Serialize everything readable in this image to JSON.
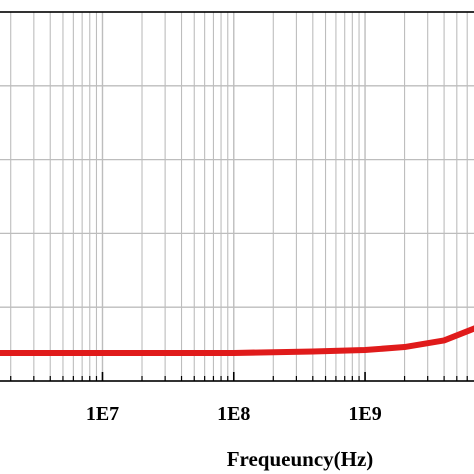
{
  "chart_data": {
    "type": "line",
    "title": "",
    "xlabel": "Frequeuncy(Hz)",
    "ylabel": "",
    "x_scale": "log",
    "xlim": [
      1600000,
      7000000000
    ],
    "ylim": [
      0,
      5
    ],
    "xticks": [
      10000000,
      100000000,
      1000000000
    ],
    "xtick_labels": [
      "1E7",
      "1E8",
      "1E9"
    ],
    "grid": true,
    "line_color": "#e01b1b",
    "series": [
      {
        "x": [
          1600000,
          10000000,
          100000000,
          400000000,
          1000000000,
          2000000000,
          4000000000,
          7000000000
        ],
        "y": [
          0.38,
          0.38,
          0.38,
          0.4,
          0.42,
          0.46,
          0.55,
          0.72
        ]
      }
    ]
  }
}
